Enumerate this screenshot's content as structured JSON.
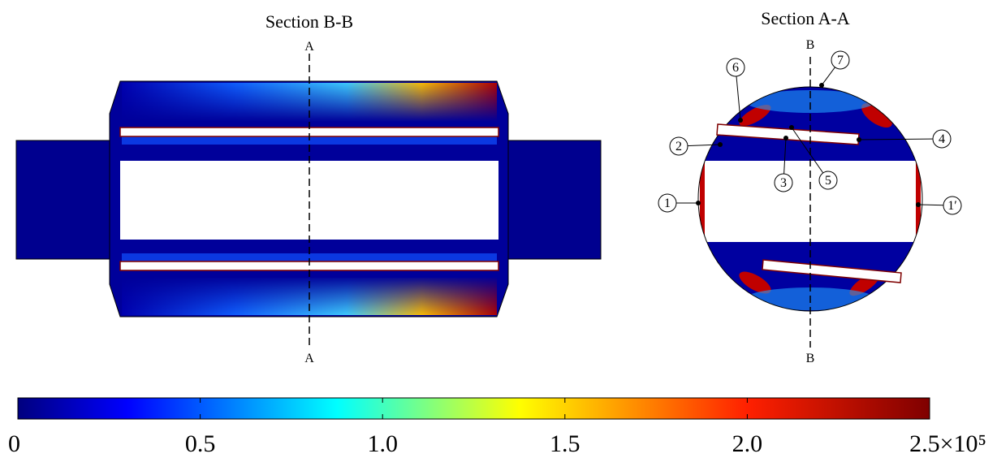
{
  "left": {
    "title": "Section B-B",
    "cut_top": "A",
    "cut_bottom": "A"
  },
  "right": {
    "title": "Section A-A",
    "cut_top": "B",
    "cut_bottom": "B",
    "points": [
      "1",
      "2",
      "3",
      "4",
      "5",
      "6",
      "7",
      "1′"
    ]
  },
  "colorbar": {
    "ticks": [
      "0",
      "0.5",
      "1.0",
      "1.5",
      "2.0",
      "2.5×10⁵"
    ]
  }
}
